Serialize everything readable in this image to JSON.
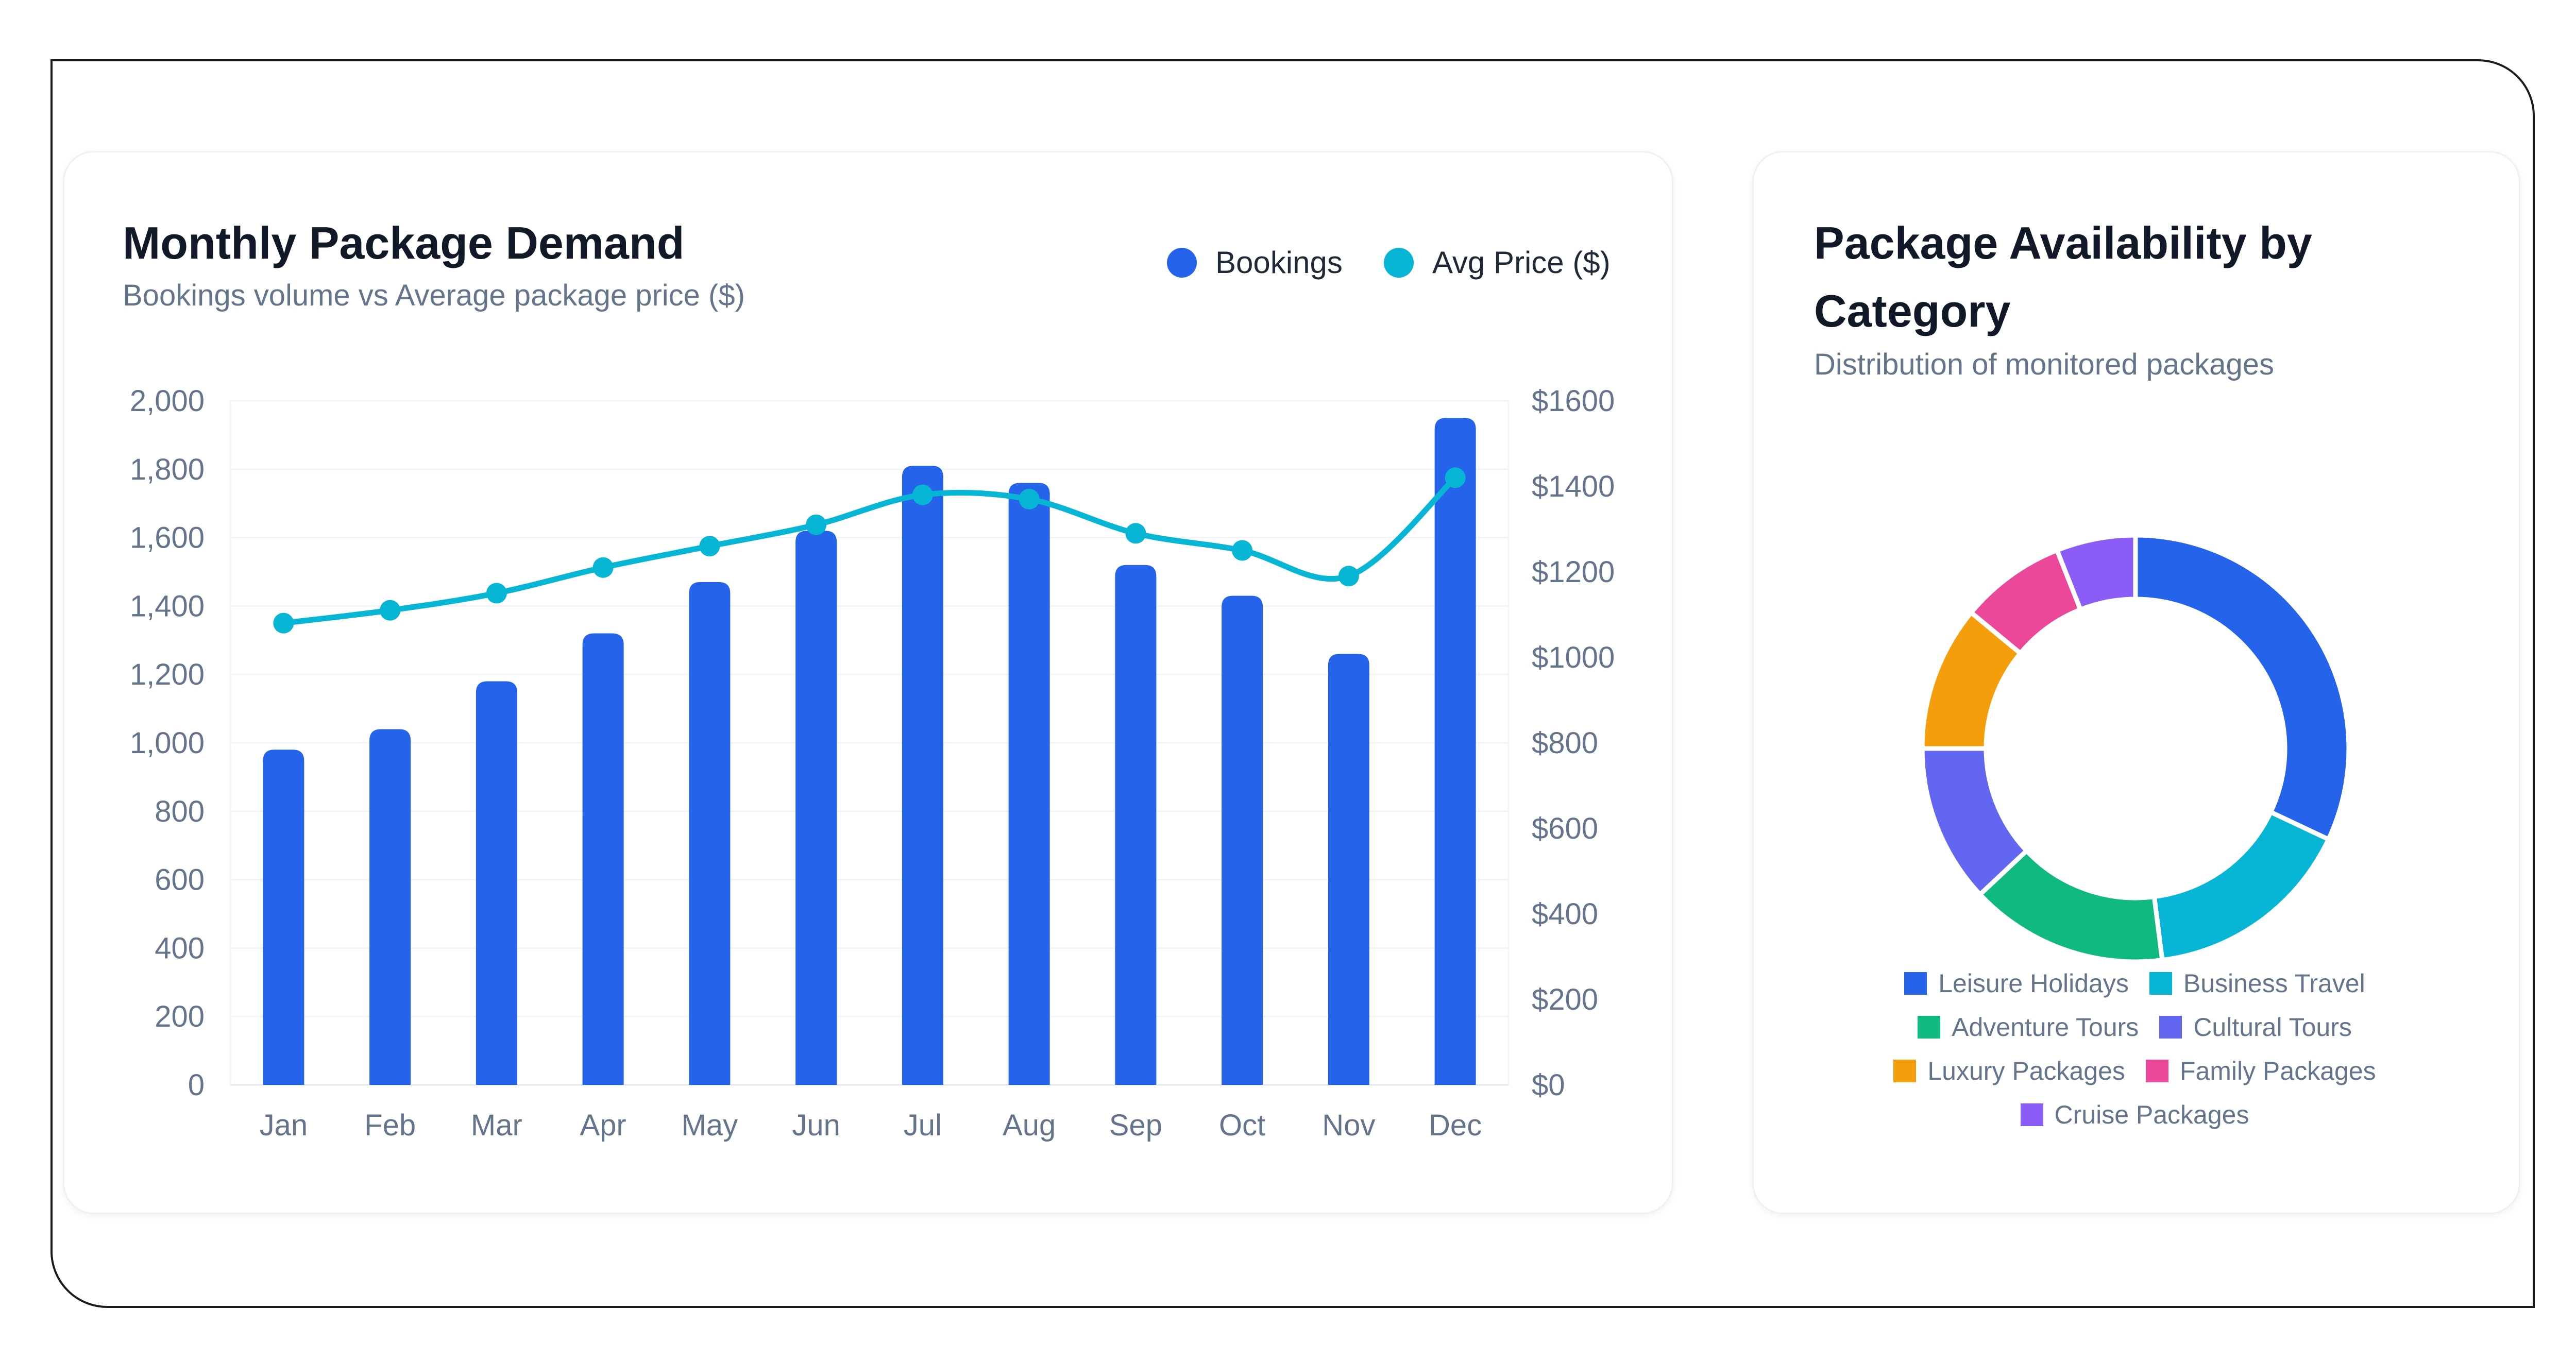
{
  "charts": {
    "demand": {
      "title": "Monthly Package Demand",
      "subtitle": "Bookings volume vs Average package price ($)"
    },
    "availability": {
      "title_line1": "Package Availability by",
      "title_line2": "Category",
      "subtitle": "Distribution of monitored packages"
    }
  },
  "chart_data": [
    {
      "type": "bar",
      "title": "Monthly Package Demand",
      "subtitle": "Bookings volume vs Average package price ($)",
      "categories": [
        "Jan",
        "Feb",
        "Mar",
        "Apr",
        "May",
        "Jun",
        "Jul",
        "Aug",
        "Sep",
        "Oct",
        "Nov",
        "Dec"
      ],
      "series": [
        {
          "name": "Bookings",
          "type": "bar",
          "axis": "left",
          "color": "#2563eb",
          "values": [
            980,
            1040,
            1180,
            1320,
            1470,
            1620,
            1810,
            1760,
            1520,
            1430,
            1260,
            1950
          ]
        },
        {
          "name": "Avg Price ($)",
          "type": "line",
          "axis": "right",
          "color": "#06b6d4",
          "values": [
            1080,
            1110,
            1150,
            1210,
            1260,
            1310,
            1380,
            1370,
            1290,
            1250,
            1190,
            1420
          ]
        }
      ],
      "y_left": {
        "min": 0,
        "max": 2000,
        "ticks": [
          "0",
          "200",
          "400",
          "600",
          "800",
          "1,000",
          "1,200",
          "1,400",
          "1,600",
          "1,800",
          "2,000"
        ]
      },
      "y_right": {
        "min": 0,
        "max": 1600,
        "ticks": [
          "$0",
          "$200",
          "$400",
          "$600",
          "$800",
          "$1000",
          "$1200",
          "$1400",
          "$1600"
        ]
      },
      "grid": "horizontal",
      "legend": "top-right"
    },
    {
      "type": "pie",
      "variant": "donut",
      "title": "Package Availability by Category",
      "subtitle": "Distribution of monitored packages",
      "categories": [
        "Leisure Holidays",
        "Business Travel",
        "Adventure Tours",
        "Cultural Tours",
        "Luxury Packages",
        "Family Packages",
        "Cruise Packages"
      ],
      "values": [
        32,
        16,
        15,
        12,
        11,
        8,
        6
      ],
      "colors": [
        "#2563eb",
        "#06b6d4",
        "#10b981",
        "#6366f1",
        "#f59e0b",
        "#ec4899",
        "#8b5cf6"
      ],
      "legend": "bottom"
    }
  ]
}
